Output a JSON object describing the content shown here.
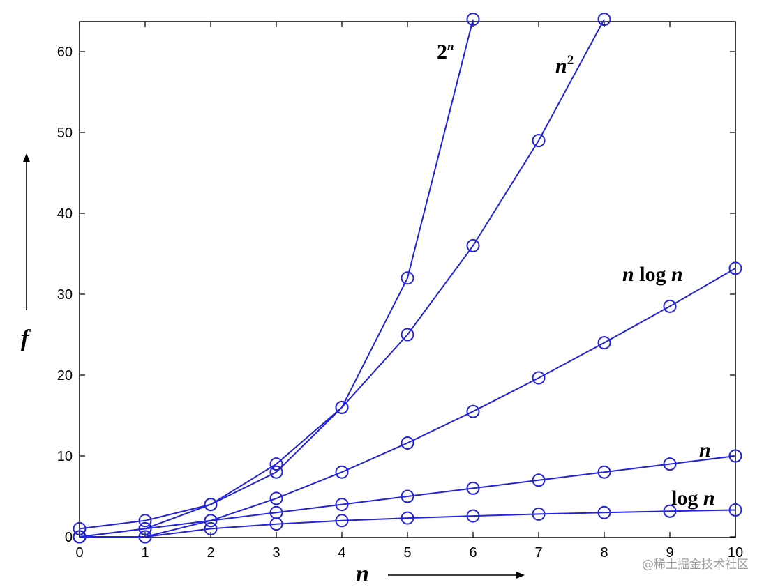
{
  "chart_data": {
    "type": "line",
    "title": "",
    "xlabel": "n",
    "ylabel": "f",
    "xlim": [
      0,
      10
    ],
    "ylim": [
      0,
      64
    ],
    "x_ticks": [
      "0",
      "1",
      "2",
      "3",
      "4",
      "5",
      "6",
      "7",
      "8",
      "9",
      "10"
    ],
    "y_ticks": [
      "0",
      "10",
      "20",
      "30",
      "40",
      "50",
      "60"
    ],
    "grid": false,
    "line_color": "#2222dd",
    "marker": "open-circle",
    "series": [
      {
        "name": "2n",
        "label_base": "2",
        "label_sup": "n",
        "x": [
          0,
          1,
          2,
          3,
          4,
          5,
          6
        ],
        "y": [
          1,
          2,
          4,
          8,
          16,
          32,
          64
        ]
      },
      {
        "name": "n2",
        "label_base": "n",
        "label_sup": "2",
        "x": [
          0,
          1,
          2,
          3,
          4,
          5,
          6,
          7,
          8
        ],
        "y": [
          0,
          1,
          4,
          9,
          16,
          25,
          36,
          49,
          64
        ]
      },
      {
        "name": "n log n",
        "label_parts": [
          "n",
          " log ",
          "n"
        ],
        "x": [
          0,
          1,
          2,
          3,
          4,
          5,
          6,
          7,
          8,
          9,
          10
        ],
        "y": [
          0,
          0,
          2,
          4.75,
          8,
          11.6,
          15.5,
          19.65,
          24,
          28.5,
          33.2
        ]
      },
      {
        "name": "n",
        "label_parts": [
          "n"
        ],
        "x": [
          0,
          1,
          2,
          3,
          4,
          5,
          6,
          7,
          8,
          9,
          10
        ],
        "y": [
          0,
          1,
          2,
          3,
          4,
          5,
          6,
          7,
          8,
          9,
          10
        ]
      },
      {
        "name": "log n",
        "label_parts": [
          "log ",
          "n"
        ],
        "x": [
          1,
          2,
          3,
          4,
          5,
          6,
          7,
          8,
          9,
          10
        ],
        "y": [
          0,
          1,
          1.58,
          2,
          2.32,
          2.58,
          2.81,
          3,
          3.17,
          3.32
        ]
      }
    ]
  },
  "watermark": "@稀土掘金技术社区"
}
